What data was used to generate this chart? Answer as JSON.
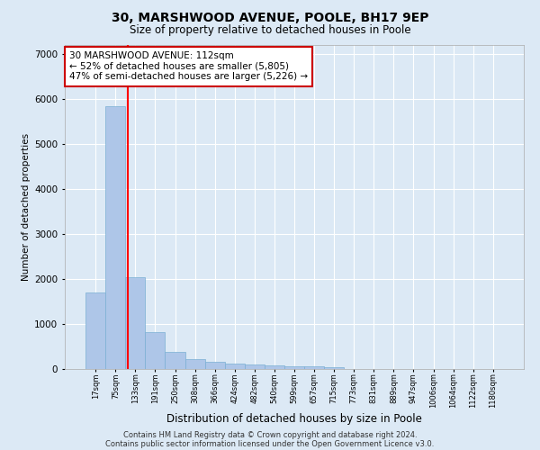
{
  "title": "30, MARSHWOOD AVENUE, POOLE, BH17 9EP",
  "subtitle": "Size of property relative to detached houses in Poole",
  "xlabel": "Distribution of detached houses by size in Poole",
  "ylabel": "Number of detached properties",
  "footnote1": "Contains HM Land Registry data © Crown copyright and database right 2024.",
  "footnote2": "Contains public sector information licensed under the Open Government Licence v3.0.",
  "bar_color": "#aec6e8",
  "bar_edge_color": "#7aafd4",
  "bar_width": 1.0,
  "annotation_text": "30 MARSHWOOD AVENUE: 112sqm\n← 52% of detached houses are smaller (5,805)\n47% of semi-detached houses are larger (5,226) →",
  "ylim": [
    0,
    7200
  ],
  "yticks": [
    0,
    1000,
    2000,
    3000,
    4000,
    5000,
    6000,
    7000
  ],
  "categories": [
    "17sqm",
    "75sqm",
    "133sqm",
    "191sqm",
    "250sqm",
    "308sqm",
    "366sqm",
    "424sqm",
    "482sqm",
    "540sqm",
    "599sqm",
    "657sqm",
    "715sqm",
    "773sqm",
    "831sqm",
    "889sqm",
    "947sqm",
    "1006sqm",
    "1064sqm",
    "1122sqm",
    "1180sqm"
  ],
  "values": [
    1700,
    5850,
    2050,
    820,
    380,
    220,
    155,
    120,
    100,
    80,
    70,
    60,
    50,
    0,
    0,
    0,
    0,
    0,
    0,
    0,
    0
  ],
  "background_color": "#dce9f5",
  "grid_color": "#ffffff"
}
